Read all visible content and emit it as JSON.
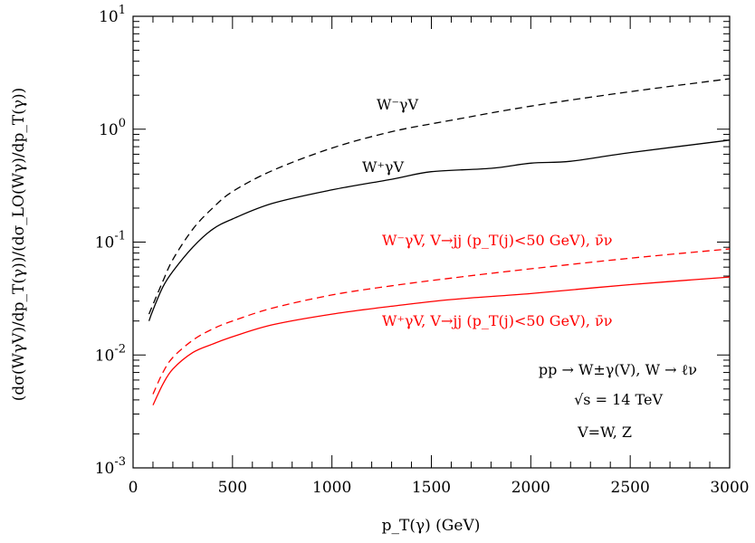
{
  "chart_data": {
    "type": "line",
    "xlabel": "p_T(γ) (GeV)",
    "ylabel": "(dσ(WγV)/dp_T(γ))/(dσ_LO(Wγ)/dp_T(γ))",
    "xlim": [
      0,
      3000
    ],
    "ylim": [
      0.001,
      10
    ],
    "yscale": "log",
    "grid": false,
    "x_ticks": [
      "0",
      "500",
      "1000",
      "1500",
      "2000",
      "2500",
      "3000"
    ],
    "y_ticks": [
      "10^-3",
      "10^-2",
      "10^-1",
      "10^0",
      "10^1"
    ],
    "series": [
      {
        "name": "W⁻γV",
        "color": "#000000",
        "dash": true,
        "points": [
          [
            80,
            0.023
          ],
          [
            100,
            0.028
          ],
          [
            150,
            0.045
          ],
          [
            200,
            0.07
          ],
          [
            300,
            0.13
          ],
          [
            400,
            0.2
          ],
          [
            500,
            0.28
          ],
          [
            700,
            0.43
          ],
          [
            1000,
            0.68
          ],
          [
            1300,
            0.95
          ],
          [
            1600,
            1.2
          ],
          [
            2000,
            1.6
          ],
          [
            2500,
            2.15
          ],
          [
            3000,
            2.8
          ]
        ]
      },
      {
        "name": "W⁺γV",
        "color": "#000000",
        "dash": false,
        "points": [
          [
            80,
            0.02
          ],
          [
            100,
            0.025
          ],
          [
            150,
            0.04
          ],
          [
            200,
            0.055
          ],
          [
            300,
            0.09
          ],
          [
            400,
            0.13
          ],
          [
            500,
            0.16
          ],
          [
            700,
            0.22
          ],
          [
            1000,
            0.29
          ],
          [
            1300,
            0.36
          ],
          [
            1500,
            0.42
          ],
          [
            1800,
            0.45
          ],
          [
            2000,
            0.5
          ],
          [
            2200,
            0.52
          ],
          [
            2500,
            0.62
          ],
          [
            3000,
            0.8
          ]
        ]
      },
      {
        "name": "W⁻γV, V→jj (p_T(j)<50 GeV), ν̄ν",
        "color": "#ff0000",
        "dash": true,
        "points": [
          [
            100,
            0.0045
          ],
          [
            150,
            0.007
          ],
          [
            200,
            0.0095
          ],
          [
            300,
            0.0135
          ],
          [
            400,
            0.017
          ],
          [
            500,
            0.02
          ],
          [
            700,
            0.026
          ],
          [
            1000,
            0.034
          ],
          [
            1300,
            0.041
          ],
          [
            1600,
            0.048
          ],
          [
            2000,
            0.058
          ],
          [
            2500,
            0.072
          ],
          [
            3000,
            0.087
          ]
        ]
      },
      {
        "name": "W⁺γV, V→jj (p_T(j)<50 GeV), ν̄ν",
        "color": "#ff0000",
        "dash": false,
        "points": [
          [
            100,
            0.0036
          ],
          [
            150,
            0.0055
          ],
          [
            200,
            0.0075
          ],
          [
            300,
            0.0105
          ],
          [
            400,
            0.0125
          ],
          [
            500,
            0.0145
          ],
          [
            700,
            0.0185
          ],
          [
            1000,
            0.023
          ],
          [
            1300,
            0.027
          ],
          [
            1600,
            0.031
          ],
          [
            2000,
            0.035
          ],
          [
            2500,
            0.042
          ],
          [
            3000,
            0.049
          ]
        ]
      }
    ],
    "annotations": {
      "process": "pp → W±γ(V), W → ℓν",
      "energy": "√s = 14 TeV",
      "boson": "V=W, Z"
    }
  }
}
